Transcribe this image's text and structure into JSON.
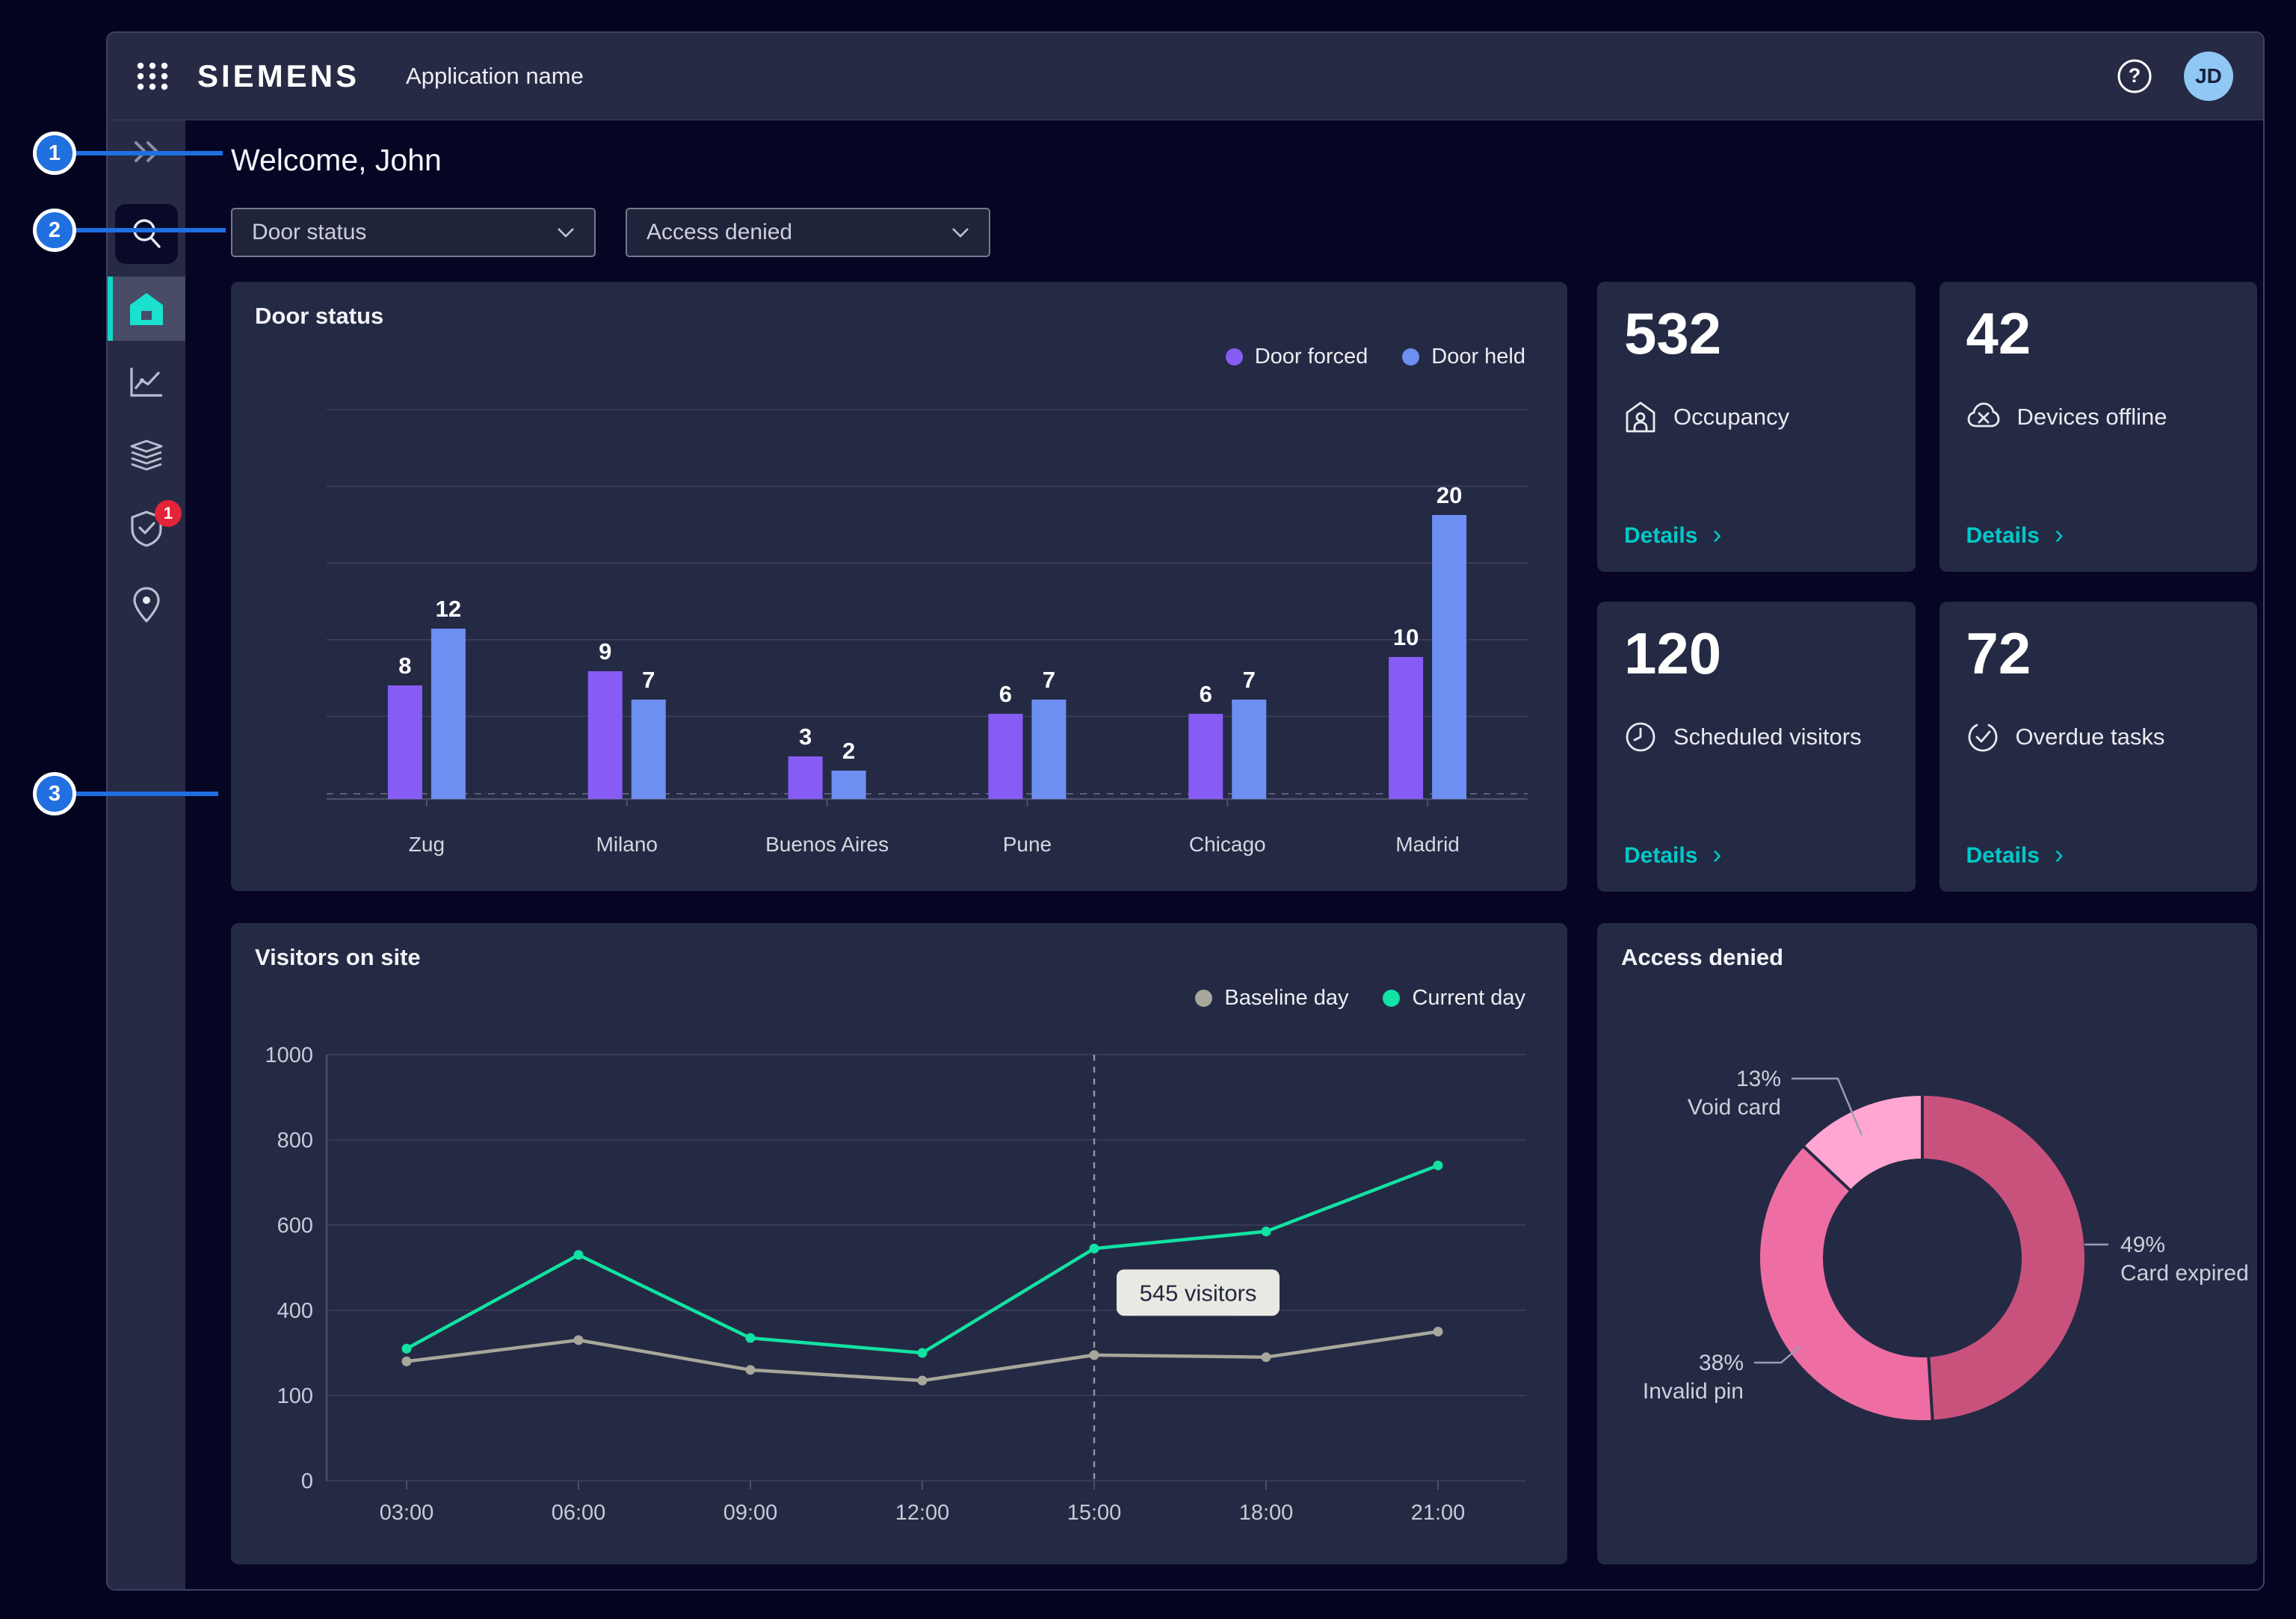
{
  "header": {
    "logo": "SIEMENS",
    "app_name": "Application name",
    "avatar_initials": "JD"
  },
  "sidebar": {
    "active_item": "home",
    "items": [
      {
        "name": "collapse",
        "icon": "double-chevron-right-icon"
      },
      {
        "name": "search",
        "icon": "search-icon"
      },
      {
        "name": "home",
        "icon": "home-icon"
      },
      {
        "name": "analytics",
        "icon": "trend-chart-icon"
      },
      {
        "name": "layers",
        "icon": "layers-icon"
      },
      {
        "name": "security",
        "icon": "shield-check-icon",
        "badge": "1"
      },
      {
        "name": "locations",
        "icon": "map-pin-icon"
      }
    ]
  },
  "page": {
    "greeting": "Welcome, John"
  },
  "filters": [
    {
      "value": "Door status"
    },
    {
      "value": "Access denied"
    }
  ],
  "callouts": [
    {
      "number": "1"
    },
    {
      "number": "2"
    },
    {
      "number": "3"
    }
  ],
  "kpis": [
    {
      "value": "532",
      "label": "Occupancy",
      "icon": "occupancy-icon",
      "link": "Details"
    },
    {
      "value": "42",
      "label": "Devices offline",
      "icon": "device-offline-icon",
      "link": "Details"
    },
    {
      "value": "120",
      "label": "Scheduled visitors",
      "icon": "clock-icon",
      "link": "Details"
    },
    {
      "value": "72",
      "label": "Overdue tasks",
      "icon": "check-circle-icon",
      "link": "Details"
    }
  ],
  "colors": {
    "accent_teal": "#00C9C9",
    "callout_blue": "#1E6FE0",
    "badge_red": "#E32336",
    "avatar_blue": "#8FC8F5",
    "panel_bg": "#252A44",
    "grid_line": "#3C405A",
    "axis_text": "#C8CAD7"
  },
  "chart_data": [
    {
      "id": "door_status",
      "type": "bar",
      "title": "Door status",
      "categories": [
        "Zug",
        "Milano",
        "Buenos Aires",
        "Pune",
        "Chicago",
        "Madrid"
      ],
      "series": [
        {
          "name": "Door forced",
          "color": "#875CF5",
          "values": [
            8,
            9,
            3,
            6,
            6,
            10
          ]
        },
        {
          "name": "Door held",
          "color": "#6E8FF2",
          "values": [
            12,
            7,
            2,
            7,
            7,
            20
          ]
        }
      ],
      "ylim": [
        0,
        26
      ],
      "gridlines": 5,
      "legend_position": "top-right",
      "value_labels": true
    },
    {
      "id": "visitors_on_site",
      "type": "line",
      "title": "Visitors on site",
      "x": [
        "03:00",
        "06:00",
        "09:00",
        "12:00",
        "15:00",
        "18:00",
        "21:00"
      ],
      "ytick_labels": [
        "1000",
        "800",
        "600",
        "400",
        "100",
        "0"
      ],
      "ylim": [
        0,
        1000
      ],
      "series": [
        {
          "name": "Baseline day",
          "color": "#A7A79B",
          "values": [
            280,
            330,
            260,
            235,
            295,
            290,
            350
          ]
        },
        {
          "name": "Current day",
          "color": "#12E2A3",
          "values": [
            310,
            530,
            335,
            300,
            545,
            585,
            740
          ]
        }
      ],
      "annotation": {
        "x_index": 4,
        "label": "545 visitors",
        "style": "dashed-vertical-line"
      },
      "legend_position": "top-right"
    },
    {
      "id": "access_denied",
      "type": "donut",
      "title": "Access denied",
      "slices": [
        {
          "label": "Card expired",
          "pct": 49,
          "color": "#C9527D"
        },
        {
          "label": "Invalid pin",
          "pct": 38,
          "color": "#EE6EA4"
        },
        {
          "label": "Void card",
          "pct": 13,
          "color": "#FFA6D2"
        }
      ]
    }
  ]
}
